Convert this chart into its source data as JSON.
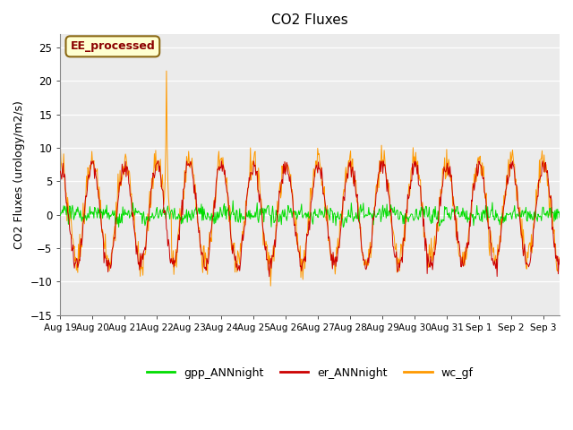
{
  "title": "CO2 Fluxes",
  "ylabel": "CO2 Fluxes (urology/m2/s)",
  "ylim": [
    -15,
    27
  ],
  "yticks": [
    -15,
    -10,
    -5,
    0,
    5,
    10,
    15,
    20,
    25
  ],
  "annotation_text": "EE_processed",
  "annotation_color": "#8b0000",
  "annotation_bg": "#ffffd0",
  "annotation_border": "#8b6914",
  "gpp_color": "#00dd00",
  "er_color": "#cc0000",
  "wc_color": "#ff9900",
  "legend_labels": [
    "gpp_ANNnight",
    "er_ANNnight",
    "wc_gf"
  ],
  "bg_color": "#ebebeb",
  "grid_color": "#ffffff",
  "x_labels": [
    "Aug 19",
    "Aug 20",
    "Aug 21",
    "Aug 22",
    "Aug 23",
    "Aug 24",
    "Aug 25",
    "Aug 26",
    "Aug 27",
    "Aug 28",
    "Aug 29",
    "Aug 30",
    "Aug 31",
    "Sep 1",
    "Sep 2",
    "Sep 3"
  ],
  "n_days": 15.5,
  "points_per_day": 48,
  "spike_day": 3.3,
  "spike_value": 21.5
}
